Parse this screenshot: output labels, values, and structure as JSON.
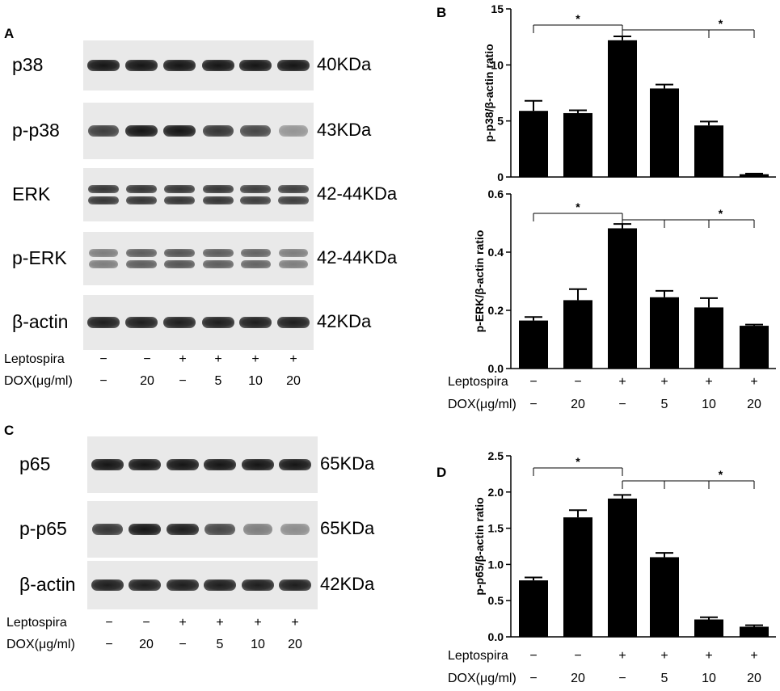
{
  "panels": {
    "A": "A",
    "B": "B",
    "C": "C",
    "D": "D"
  },
  "blots_A": [
    {
      "label": "p38",
      "kda": "40KDa",
      "intensity": [
        1,
        1,
        1,
        1,
        1,
        1
      ]
    },
    {
      "label": "p-p38",
      "kda": "43KDa",
      "intensity": [
        0.75,
        1,
        1,
        0.8,
        0.7,
        0.2
      ]
    },
    {
      "label": "ERK",
      "kda": "42-44KDa",
      "intensity": [
        0.8,
        0.8,
        0.8,
        0.8,
        0.75,
        0.75
      ]
    },
    {
      "label": "p-ERK",
      "kda": "42-44KDa",
      "intensity": [
        0.35,
        0.55,
        0.6,
        0.55,
        0.5,
        0.35
      ]
    },
    {
      "label": "β-actin",
      "kda": "42KDa",
      "intensity": [
        0.95,
        0.95,
        0.95,
        0.95,
        0.95,
        0.95
      ]
    }
  ],
  "blots_C": [
    {
      "label": "p65",
      "kda": "65KDa",
      "intensity": [
        1,
        1,
        1,
        1,
        1,
        1
      ]
    },
    {
      "label": "p-p65",
      "kda": "65KDa",
      "intensity": [
        0.8,
        1,
        0.95,
        0.7,
        0.35,
        0.25
      ]
    },
    {
      "label": "β-actin",
      "kda": "42KDa",
      "intensity": [
        0.95,
        0.95,
        0.95,
        0.95,
        0.95,
        0.95
      ]
    }
  ],
  "conditions": {
    "leptospira_label": "Leptospira",
    "dox_label": "DOX(μg/ml)",
    "leptospira": [
      "−",
      "−",
      "+",
      "+",
      "+",
      "+"
    ],
    "dox": [
      "−",
      "20",
      "−",
      "5",
      "10",
      "20"
    ]
  },
  "chart_data": [
    {
      "panel": "B",
      "type": "bar",
      "ylabel": "p-p38/β-actin ratio",
      "ylim": [
        0,
        15
      ],
      "yticks": [
        0,
        5,
        10,
        15
      ],
      "ytick_labels": [
        "0",
        "5",
        "10",
        "15"
      ],
      "values": [
        5.9,
        5.7,
        12.2,
        7.9,
        4.6,
        0.25
      ],
      "errors": [
        0.9,
        0.25,
        0.35,
        0.35,
        0.35,
        0.05
      ],
      "bar_color": "#000000",
      "significance": [
        {
          "from": 0,
          "to": 2,
          "label": "*"
        },
        {
          "from": 2,
          "to": [
            4,
            5
          ],
          "label": "*"
        }
      ]
    },
    {
      "panel": "B",
      "type": "bar",
      "ylabel": "p-ERK/β-actin ratio",
      "ylim": [
        0,
        0.6
      ],
      "yticks": [
        0,
        0.2,
        0.4,
        0.6
      ],
      "ytick_labels": [
        "0.0",
        "0.2",
        "0.4",
        "0.6"
      ],
      "values": [
        0.165,
        0.235,
        0.482,
        0.245,
        0.21,
        0.147
      ],
      "errors": [
        0.012,
        0.038,
        0.015,
        0.022,
        0.032,
        0.004
      ],
      "bar_color": "#000000",
      "significance": [
        {
          "from": 0,
          "to": 2,
          "label": "*"
        },
        {
          "from": 2,
          "to": [
            3,
            4,
            5
          ],
          "label": "*"
        }
      ]
    },
    {
      "panel": "D",
      "type": "bar",
      "ylabel": "p-p65/β-actin ratio",
      "ylim": [
        0,
        2.5
      ],
      "yticks": [
        0,
        0.5,
        1.0,
        1.5,
        2.0,
        2.5
      ],
      "ytick_labels": [
        "0.0",
        "0.5",
        "1.0",
        "1.5",
        "2.0",
        "2.5"
      ],
      "values": [
        0.78,
        1.65,
        1.91,
        1.1,
        0.24,
        0.14
      ],
      "errors": [
        0.04,
        0.1,
        0.05,
        0.06,
        0.03,
        0.02
      ],
      "bar_color": "#000000",
      "significance": [
        {
          "from": 0,
          "to": 2,
          "label": "*"
        },
        {
          "from": 2,
          "to": [
            3,
            4,
            5
          ],
          "label": "*"
        }
      ]
    }
  ]
}
